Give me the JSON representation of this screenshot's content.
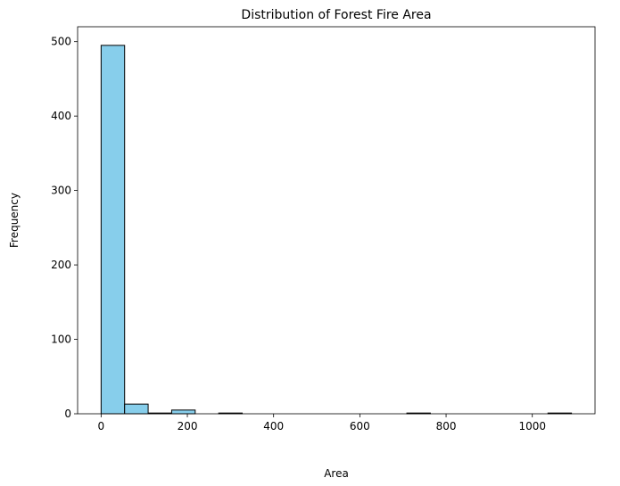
{
  "chart_data": {
    "type": "bar",
    "title": "Distribution of Forest Fire Area",
    "xlabel": "Area",
    "ylabel": "Frequency",
    "xlim": [
      -54.5,
      1145.4
    ],
    "ylim": [
      0,
      520
    ],
    "xticks": [
      0,
      200,
      400,
      600,
      800,
      1000
    ],
    "yticks": [
      0,
      100,
      200,
      300,
      400,
      500
    ],
    "bin_edges": [
      0,
      54.54,
      109.08,
      163.62,
      218.16,
      272.7,
      327.24,
      381.78,
      436.32,
      490.86,
      545.4,
      599.94,
      654.48,
      709.02,
      763.56,
      818.1,
      872.64,
      927.18,
      981.72,
      1036.26,
      1090.8
    ],
    "values": [
      495,
      13,
      1,
      5,
      0,
      1,
      0,
      0,
      0,
      0,
      0,
      0,
      0,
      1,
      0,
      0,
      0,
      0,
      0,
      1
    ],
    "bar_color": "#87ceeb",
    "edge_color": "#000000",
    "grid": false,
    "legend": "none"
  }
}
